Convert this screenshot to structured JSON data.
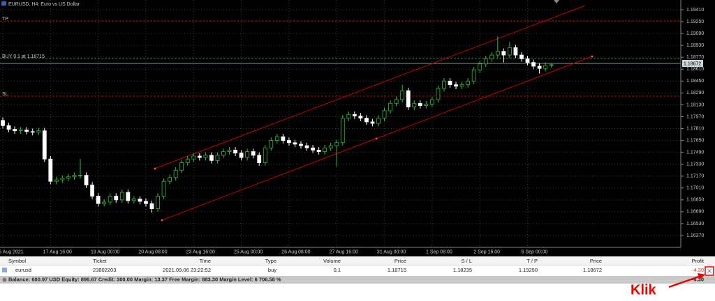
{
  "window": {
    "title": "EURUSD, H4: Euro vs US Dollar"
  },
  "chart": {
    "labels": {
      "tp": "TP",
      "buy": "BUY 0.1 at 1.18715",
      "sl": "SL"
    },
    "current_price": "1.18672",
    "price_ticks": [
      {
        "value": 1.1941,
        "label": "1.19410"
      },
      {
        "value": 1.1925,
        "label": "1.19250"
      },
      {
        "value": 1.1909,
        "label": "1.19090"
      },
      {
        "value": 1.1893,
        "label": "1.18930"
      },
      {
        "value": 1.1877,
        "label": "1.18770"
      },
      {
        "value": 1.1861,
        "label": "1.18610"
      },
      {
        "value": 1.1845,
        "label": "1.18450"
      },
      {
        "value": 1.1829,
        "label": "1.18290"
      },
      {
        "value": 1.1813,
        "label": "1.18130"
      },
      {
        "value": 1.1797,
        "label": "1.17970"
      },
      {
        "value": 1.1781,
        "label": "1.17810"
      },
      {
        "value": 1.1765,
        "label": "1.17650"
      },
      {
        "value": 1.1749,
        "label": "1.17490"
      },
      {
        "value": 1.1733,
        "label": "1.17330"
      },
      {
        "value": 1.1717,
        "label": "1.17170"
      },
      {
        "value": 1.1701,
        "label": "1.17010"
      },
      {
        "value": 1.1685,
        "label": "1.16850"
      },
      {
        "value": 1.1669,
        "label": "1.16690"
      },
      {
        "value": 1.1653,
        "label": "1.16530"
      },
      {
        "value": 1.1637,
        "label": "1.16370"
      }
    ],
    "time_labels": [
      "16 Aug 2021",
      "17 Aug 16:00",
      "19 Aug 00:00",
      "20 Aug 08:00",
      "23 Aug 16:00",
      "25 Aug 00:00",
      "26 Aug 08:00",
      "27 Aug 16:00",
      "31 Aug 00:00",
      "1 Sep 08:00",
      "2 Sep 16:00",
      "6 Sep 00:00"
    ],
    "candles": [
      [
        1.1792,
        1.1796,
        1.1781,
        1.1785
      ],
      [
        1.1785,
        1.1789,
        1.1776,
        1.178
      ],
      [
        1.178,
        1.1784,
        1.1774,
        1.1778
      ],
      [
        1.1778,
        1.1783,
        1.1774,
        1.1779
      ],
      [
        1.1779,
        1.1783,
        1.1773,
        1.1777
      ],
      [
        1.1777,
        1.1781,
        1.1772,
        1.1776
      ],
      [
        1.1776,
        1.1782,
        1.1772,
        1.1778
      ],
      [
        1.1778,
        1.1782,
        1.1736,
        1.174
      ],
      [
        1.174,
        1.1744,
        1.1706,
        1.171
      ],
      [
        1.171,
        1.1716,
        1.1706,
        1.1712
      ],
      [
        1.1712,
        1.1718,
        1.1708,
        1.1714
      ],
      [
        1.1714,
        1.172,
        1.171,
        1.1716
      ],
      [
        1.1716,
        1.1722,
        1.1712,
        1.1718
      ],
      [
        1.1718,
        1.174,
        1.1714,
        1.1718
      ],
      [
        1.1718,
        1.1722,
        1.1701,
        1.1705
      ],
      [
        1.1705,
        1.1709,
        1.1686,
        1.169
      ],
      [
        1.169,
        1.1694,
        1.1676,
        1.168
      ],
      [
        1.168,
        1.1686,
        1.1676,
        1.1682
      ],
      [
        1.1682,
        1.1694,
        1.1678,
        1.169
      ],
      [
        1.169,
        1.1694,
        1.1681,
        1.1685
      ],
      [
        1.1685,
        1.1699,
        1.1681,
        1.1695
      ],
      [
        1.1695,
        1.1699,
        1.168,
        1.1684
      ],
      [
        1.1684,
        1.169,
        1.168,
        1.1686
      ],
      [
        1.1686,
        1.169,
        1.1679,
        1.1683
      ],
      [
        1.1683,
        1.1687,
        1.1676,
        1.168
      ],
      [
        1.168,
        1.1684,
        1.1668,
        1.1673
      ],
      [
        1.1673,
        1.1694,
        1.1669,
        1.169
      ],
      [
        1.169,
        1.1714,
        1.1686,
        1.171
      ],
      [
        1.171,
        1.1719,
        1.1706,
        1.1715
      ],
      [
        1.1715,
        1.1729,
        1.1711,
        1.1725
      ],
      [
        1.1725,
        1.1739,
        1.1721,
        1.1735
      ],
      [
        1.1735,
        1.1744,
        1.1731,
        1.174
      ],
      [
        1.174,
        1.1748,
        1.1736,
        1.1744
      ],
      [
        1.1744,
        1.1748,
        1.1738,
        1.1742
      ],
      [
        1.1742,
        1.1749,
        1.1738,
        1.1745
      ],
      [
        1.1745,
        1.1749,
        1.1734,
        1.1738
      ],
      [
        1.1738,
        1.1749,
        1.1734,
        1.1745
      ],
      [
        1.1745,
        1.1754,
        1.1741,
        1.175
      ],
      [
        1.175,
        1.1756,
        1.1746,
        1.1752
      ],
      [
        1.1752,
        1.1756,
        1.1744,
        1.1748
      ],
      [
        1.1748,
        1.1752,
        1.1738,
        1.1742
      ],
      [
        1.1742,
        1.1754,
        1.1738,
        1.175
      ],
      [
        1.175,
        1.1754,
        1.1741,
        1.1745
      ],
      [
        1.1745,
        1.1749,
        1.1731,
        1.1735
      ],
      [
        1.1735,
        1.1759,
        1.1731,
        1.1755
      ],
      [
        1.1755,
        1.1769,
        1.1751,
        1.1765
      ],
      [
        1.1765,
        1.1774,
        1.1761,
        1.177
      ],
      [
        1.177,
        1.1774,
        1.1761,
        1.1765
      ],
      [
        1.1765,
        1.1769,
        1.1758,
        1.1762
      ],
      [
        1.1762,
        1.1766,
        1.1756,
        1.176
      ],
      [
        1.176,
        1.1764,
        1.1754,
        1.1758
      ],
      [
        1.1758,
        1.1762,
        1.1751,
        1.1755
      ],
      [
        1.1755,
        1.1759,
        1.1748,
        1.1752
      ],
      [
        1.1752,
        1.1756,
        1.1746,
        1.175
      ],
      [
        1.175,
        1.1759,
        1.1746,
        1.1755
      ],
      [
        1.1755,
        1.1762,
        1.1751,
        1.1758
      ],
      [
        1.1758,
        1.1766,
        1.173,
        1.1762
      ],
      [
        1.1762,
        1.1799,
        1.1758,
        1.1795
      ],
      [
        1.1795,
        1.1804,
        1.1791,
        1.18
      ],
      [
        1.18,
        1.1804,
        1.1794,
        1.1798
      ],
      [
        1.1798,
        1.1802,
        1.1791,
        1.1795
      ],
      [
        1.1795,
        1.1799,
        1.1786,
        1.179
      ],
      [
        1.179,
        1.1794,
        1.1784,
        1.1788
      ],
      [
        1.1788,
        1.1799,
        1.1784,
        1.1795
      ],
      [
        1.1795,
        1.1809,
        1.1791,
        1.1805
      ],
      [
        1.1805,
        1.1819,
        1.1801,
        1.1815
      ],
      [
        1.1815,
        1.1824,
        1.1811,
        1.182
      ],
      [
        1.182,
        1.184,
        1.1816,
        1.1832
      ],
      [
        1.1832,
        1.1836,
        1.1806,
        1.181
      ],
      [
        1.181,
        1.1819,
        1.1806,
        1.1815
      ],
      [
        1.1815,
        1.1819,
        1.1808,
        1.1812
      ],
      [
        1.1812,
        1.1818,
        1.1808,
        1.1814
      ],
      [
        1.1814,
        1.1824,
        1.181,
        1.182
      ],
      [
        1.182,
        1.1839,
        1.1816,
        1.1835
      ],
      [
        1.1835,
        1.1849,
        1.1831,
        1.1845
      ],
      [
        1.1845,
        1.1849,
        1.1836,
        1.184
      ],
      [
        1.184,
        1.1844,
        1.1834,
        1.1838
      ],
      [
        1.1838,
        1.1844,
        1.1834,
        1.184
      ],
      [
        1.184,
        1.1849,
        1.1836,
        1.1845
      ],
      [
        1.1845,
        1.1864,
        1.1841,
        1.186
      ],
      [
        1.186,
        1.1872,
        1.1856,
        1.1868
      ],
      [
        1.1868,
        1.1879,
        1.1864,
        1.1875
      ],
      [
        1.1875,
        1.1884,
        1.1871,
        1.188
      ],
      [
        1.188,
        1.1905,
        1.1876,
        1.1885
      ],
      [
        1.1885,
        1.1889,
        1.187,
        1.188
      ],
      [
        1.188,
        1.1898,
        1.1876,
        1.189
      ],
      [
        1.189,
        1.1894,
        1.1876,
        1.188
      ],
      [
        1.188,
        1.1884,
        1.1871,
        1.1875
      ],
      [
        1.1875,
        1.1879,
        1.1866,
        1.187
      ],
      [
        1.187,
        1.1874,
        1.1861,
        1.1865
      ],
      [
        1.1865,
        1.1869,
        1.1855,
        1.1862
      ],
      [
        1.1862,
        1.187,
        1.1858,
        1.1866
      ],
      [
        1.1866,
        1.1869,
        1.1863,
        1.1867
      ]
    ]
  },
  "table": {
    "headers": [
      "Symbol",
      "Ticket",
      "Time",
      "Type",
      "Volume",
      "Price",
      "S / L",
      "T / P",
      "Price",
      "Profit"
    ],
    "rows": [
      [
        "eurusd",
        "23802203",
        "2021.09.06 23:22:52",
        "buy",
        "0.1",
        "1.18715",
        "1.18235",
        "1.19250",
        "1.18672",
        "-4.30"
      ]
    ]
  },
  "summary": {
    "text": "Balance: 600.97 USD  Equity: 896.67  Credit: 300.00  Margin: 13.37  Free Margin: 883.30  Margin Level: 6 706.58 %",
    "profit": "-4.30"
  },
  "annotation": "Klik"
}
